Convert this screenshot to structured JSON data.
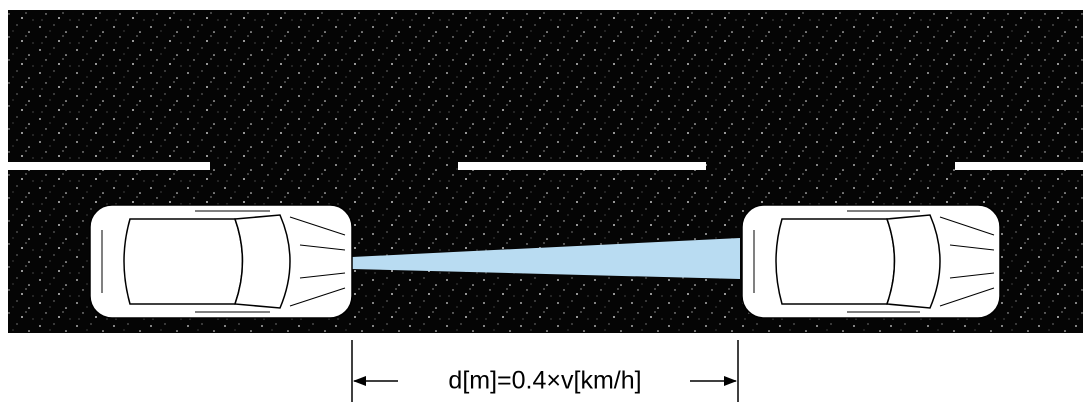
{
  "label": "d[m]=0.4×v[km/h]"
}
